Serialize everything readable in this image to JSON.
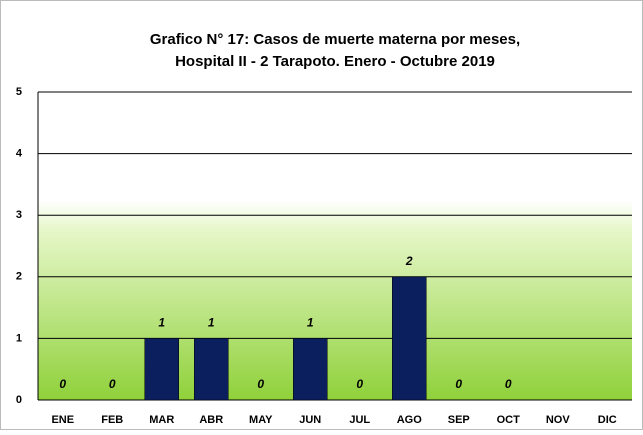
{
  "chart_data": {
    "type": "bar",
    "title": [
      "Grafico N° 17: Casos de muerte materna por meses,",
      "Hospital II - 2 Tarapoto. Enero - Octubre 2019"
    ],
    "categories": [
      "ENE",
      "FEB",
      "MAR",
      "ABR",
      "MAY",
      "JUN",
      "JUL",
      "AGO",
      "SEP",
      "OCT",
      "NOV",
      "DIC"
    ],
    "values": [
      0,
      0,
      1,
      1,
      0,
      1,
      0,
      2,
      0,
      0,
      null,
      null
    ],
    "color": "#0b1f5e",
    "ylim": [
      0,
      5
    ],
    "yticks": [
      0,
      1,
      2,
      3,
      4,
      5
    ],
    "grid": true
  }
}
